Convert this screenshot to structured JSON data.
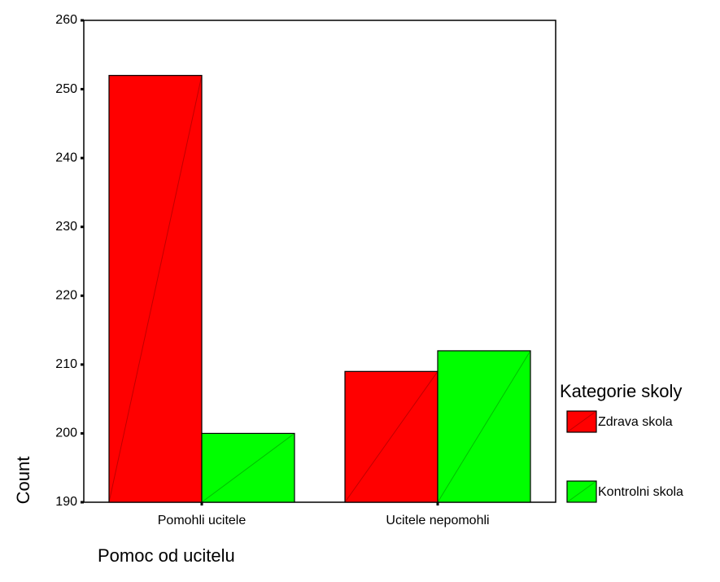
{
  "chart_data": {
    "type": "bar",
    "categories": [
      "Pomohli ucitele",
      "Ucitele nepomohli"
    ],
    "series": [
      {
        "name": "Zdrava skola",
        "color": "#ff0000",
        "values": [
          252,
          209
        ]
      },
      {
        "name": "Kontrolni skola",
        "color": "#00ff00",
        "values": [
          200,
          212
        ]
      }
    ],
    "ylim": [
      190,
      260
    ],
    "yticks": [
      190,
      200,
      210,
      220,
      230,
      240,
      250,
      260
    ],
    "ylabel": "Count",
    "xlabel": "Pomoc od ucitelu",
    "legend_title": "Kategorie skoly",
    "legend": "right",
    "grid": false
  }
}
